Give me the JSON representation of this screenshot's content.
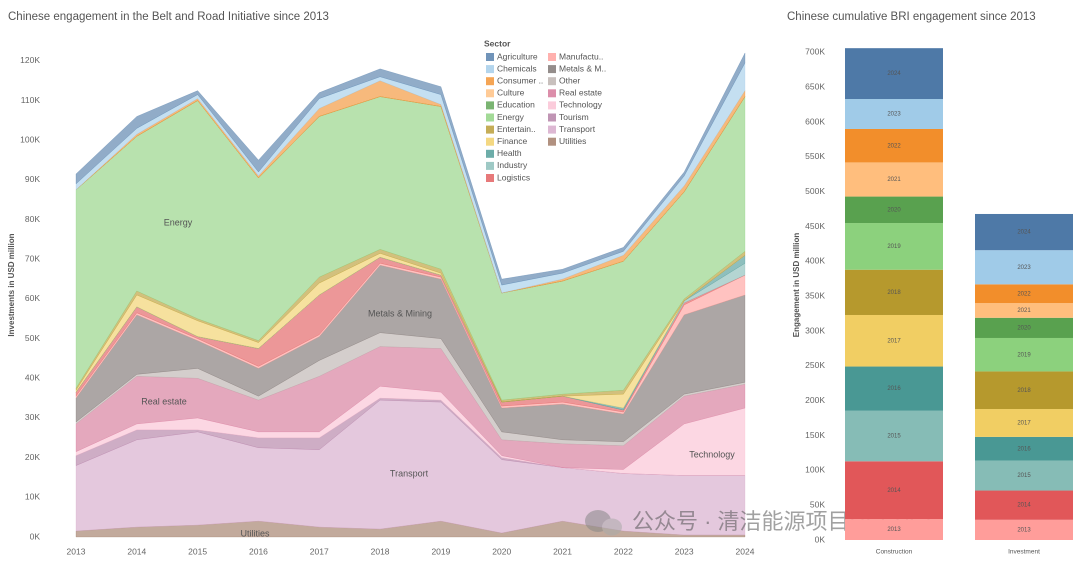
{
  "chart_data": [
    {
      "type": "stacked_area",
      "title": "Chinese engagement in the Belt and Road Initiative since 2013",
      "y_label": "Investments in USD million",
      "legend_title": "Sector",
      "legend": "top-right",
      "categories": [
        "2013",
        "2014",
        "2015",
        "2016",
        "2017",
        "2018",
        "2019",
        "2020",
        "2021",
        "2022",
        "2023",
        "2024"
      ],
      "ylim": [
        0,
        123000
      ],
      "yticks": [
        {
          "value": 0,
          "label": "0K"
        },
        {
          "value": 10000,
          "label": "10K"
        },
        {
          "value": 20000,
          "label": "20K"
        },
        {
          "value": 30000,
          "label": "30K"
        },
        {
          "value": 40000,
          "label": "40K"
        },
        {
          "value": 50000,
          "label": "50K"
        },
        {
          "value": 60000,
          "label": "60K"
        },
        {
          "value": 70000,
          "label": "70K"
        },
        {
          "value": 80000,
          "label": "80K"
        },
        {
          "value": 90000,
          "label": "90K"
        },
        {
          "value": 100000,
          "label": "100K"
        },
        {
          "value": 110000,
          "label": "110K"
        },
        {
          "value": 120000,
          "label": "120K"
        }
      ],
      "grid": false,
      "series": [
        {
          "name": "Agriculture",
          "color": "#4e79a7",
          "values": [
            2500,
            3000,
            1000,
            3000,
            1500,
            2000,
            2000,
            1500,
            1000,
            1000,
            1000,
            2500
          ]
        },
        {
          "name": "Chemicals",
          "color": "#a0cbe8",
          "values": [
            1500,
            1500,
            1000,
            1000,
            2500,
            1000,
            2500,
            2000,
            1500,
            1000,
            2500,
            7000
          ]
        },
        {
          "name": "Consumer ..",
          "color": "#f28e2b",
          "values": [
            0,
            500,
            500,
            500,
            2000,
            4000,
            500,
            0,
            500,
            1500,
            1500,
            1500
          ]
        },
        {
          "name": "Culture",
          "color": "#ffbe7d",
          "values": [
            0,
            0,
            0,
            0,
            0,
            0,
            0,
            0,
            0,
            0,
            0,
            0
          ]
        },
        {
          "name": "Education",
          "color": "#59a14f",
          "values": [
            0,
            0,
            0,
            0,
            0,
            0,
            0,
            0,
            0,
            0,
            0,
            0
          ]
        },
        {
          "name": "Energy",
          "color": "#8cd17d",
          "values": [
            50000,
            39000,
            55000,
            41000,
            40500,
            38500,
            41000,
            27000,
            28500,
            32500,
            27000,
            39000
          ]
        },
        {
          "name": "Entertain..",
          "color": "#b6992d",
          "values": [
            500,
            1000,
            500,
            500,
            1500,
            1000,
            1000,
            500,
            500,
            1000,
            500,
            1000
          ]
        },
        {
          "name": "Finance",
          "color": "#f1ce63",
          "values": [
            500,
            3000,
            4000,
            1500,
            3000,
            1000,
            500,
            0,
            0,
            3500,
            0,
            0
          ]
        },
        {
          "name": "Health",
          "color": "#499894",
          "values": [
            0,
            0,
            0,
            0,
            0,
            0,
            0,
            0,
            0,
            500,
            0,
            2000
          ]
        },
        {
          "name": "Industry",
          "color": "#86bcb6",
          "values": [
            0,
            0,
            0,
            0,
            0,
            0,
            0,
            0,
            0,
            0,
            500,
            3000
          ]
        },
        {
          "name": "Logistics",
          "color": "#e15759",
          "values": [
            1000,
            1500,
            500,
            4500,
            10000,
            1500,
            500,
            1000,
            1500,
            500,
            500,
            0
          ]
        },
        {
          "name": "Manufactu..",
          "color": "#ff9d9a",
          "values": [
            500,
            500,
            500,
            500,
            500,
            500,
            500,
            500,
            500,
            500,
            2500,
            5000
          ]
        },
        {
          "name": "Metals & M..",
          "color": "#79706e",
          "values": [
            6000,
            15000,
            7000,
            7000,
            6000,
            17000,
            15000,
            6000,
            9000,
            7000,
            20000,
            22000
          ]
        },
        {
          "name": "Other",
          "color": "#bab0ac",
          "values": [
            500,
            500,
            2500,
            1000,
            4000,
            3500,
            2500,
            2000,
            1000,
            1000,
            500,
            500
          ]
        },
        {
          "name": "Real estate",
          "color": "#d37295",
          "values": [
            7000,
            12000,
            10000,
            8000,
            14000,
            10000,
            11000,
            4000,
            6000,
            6000,
            7000,
            6000
          ]
        },
        {
          "name": "Technology",
          "color": "#fabfd2",
          "values": [
            1000,
            1500,
            3000,
            1500,
            1500,
            3000,
            2000,
            500,
            0,
            1000,
            13000,
            17000
          ]
        },
        {
          "name": "Tourism",
          "color": "#b07aa1",
          "values": [
            2500,
            2500,
            500,
            2500,
            3000,
            500,
            500,
            500,
            0,
            0,
            0,
            0
          ]
        },
        {
          "name": "Transport",
          "color": "#d4a6c8",
          "values": [
            16500,
            22000,
            23500,
            18500,
            19500,
            32500,
            30000,
            18500,
            13500,
            14500,
            15000,
            15000
          ]
        },
        {
          "name": "Utilities",
          "color": "#9d7660",
          "values": [
            1500,
            2500,
            3000,
            4000,
            2500,
            2000,
            4000,
            1000,
            4000,
            1500,
            500,
            500
          ]
        }
      ],
      "annotations": [
        "Energy",
        "Metals & Mining",
        "Real estate",
        "Transport",
        "Technology",
        "Utilities"
      ],
      "watermark": "公众号 · 清洁能源项目REEPCI"
    },
    {
      "type": "stacked_bar",
      "title": "Chinese cumulative BRI engagement since 2013",
      "y_label": "Engagement in USD million",
      "categories": [
        "Construction",
        "Investment"
      ],
      "ylim": [
        0,
        712000
      ],
      "yticks": [
        {
          "value": 0,
          "label": "0K"
        },
        {
          "value": 50000,
          "label": "50K"
        },
        {
          "value": 100000,
          "label": "100K"
        },
        {
          "value": 150000,
          "label": "150K"
        },
        {
          "value": 200000,
          "label": "200K"
        },
        {
          "value": 250000,
          "label": "250K"
        },
        {
          "value": 300000,
          "label": "300K"
        },
        {
          "value": 350000,
          "label": "350K"
        },
        {
          "value": 400000,
          "label": "400K"
        },
        {
          "value": 450000,
          "label": "450K"
        },
        {
          "value": 500000,
          "label": "500K"
        },
        {
          "value": 550000,
          "label": "550K"
        },
        {
          "value": 600000,
          "label": "600K"
        },
        {
          "value": 650000,
          "label": "650K"
        },
        {
          "value": 700000,
          "label": "700K"
        }
      ],
      "series": [
        {
          "name": "2013",
          "color": "#ff9d9a",
          "values": [
            30000,
            29000
          ]
        },
        {
          "name": "2014",
          "color": "#e15759",
          "values": [
            83000,
            42000
          ]
        },
        {
          "name": "2015",
          "color": "#86bcb6",
          "values": [
            72500,
            43000
          ]
        },
        {
          "name": "2016",
          "color": "#499894",
          "values": [
            63500,
            34000
          ]
        },
        {
          "name": "2017",
          "color": "#f1ce63",
          "values": [
            74000,
            40000
          ]
        },
        {
          "name": "2018",
          "color": "#b6992d",
          "values": [
            65000,
            54000
          ]
        },
        {
          "name": "2019",
          "color": "#8cd17d",
          "values": [
            67000,
            48000
          ]
        },
        {
          "name": "2020",
          "color": "#59a14f",
          "values": [
            38000,
            29000
          ]
        },
        {
          "name": "2021",
          "color": "#ffbe7d",
          "values": [
            49000,
            21000
          ]
        },
        {
          "name": "2022",
          "color": "#f28e2b",
          "values": [
            48000,
            27000
          ]
        },
        {
          "name": "2023",
          "color": "#a0cbe8",
          "values": [
            43000,
            49000
          ]
        },
        {
          "name": "2024",
          "color": "#4e79a7",
          "values": [
            73000,
            52000
          ]
        }
      ]
    }
  ]
}
